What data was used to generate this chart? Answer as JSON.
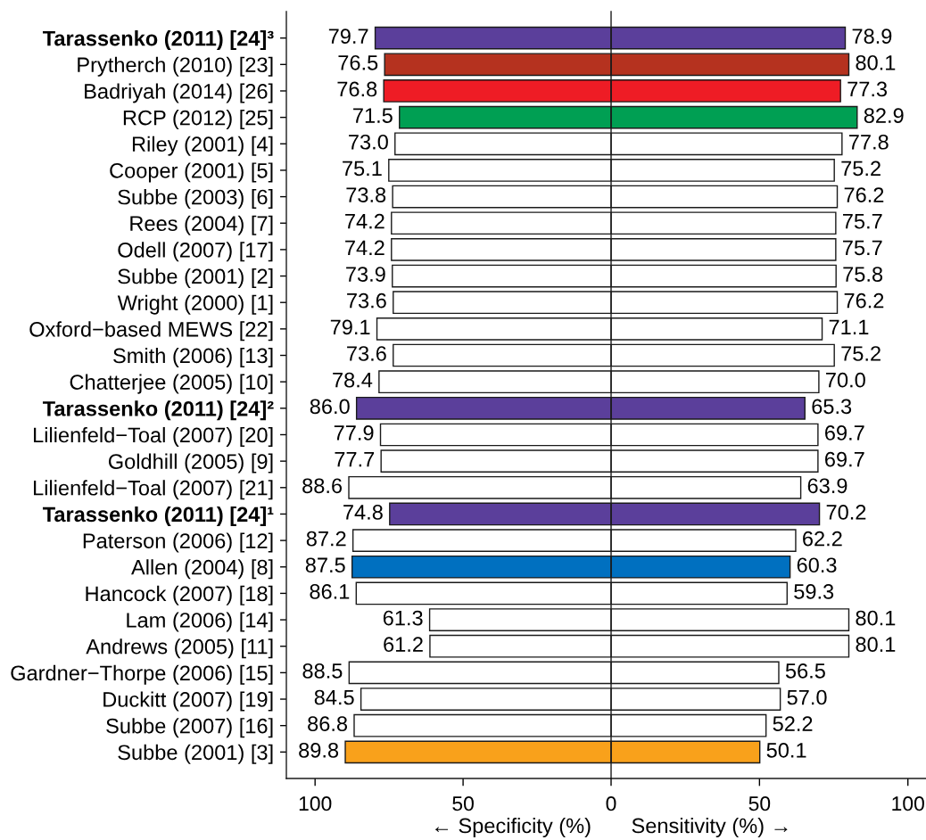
{
  "chart_data": [
    {
      "type": "bar",
      "orientation": "horizontal",
      "categories": [
        "Tarassenko (2011) [24]³",
        "Prytherch (2010) [23]",
        "Badriyah (2014) [26]",
        "RCP (2012) [25]",
        "Riley (2001) [4]",
        "Cooper (2001) [5]",
        "Subbe (2003) [6]",
        "Rees (2004) [7]",
        "Odell (2007) [17]",
        "Subbe (2001) [2]",
        "Wright (2000) [1]",
        "Oxford−based MEWS [22]",
        "Smith (2006) [13]",
        "Chatterjee (2005) [10]",
        "Tarassenko (2011) [24]²",
        "Lilienfeld−Toal (2007) [20]",
        "Goldhill (2005) [9]",
        "Lilienfeld−Toal (2007) [21]",
        "Tarassenko (2011) [24]¹",
        "Paterson (2006) [12]",
        "Allen (2004) [8]",
        "Hancock (2007) [18]",
        "Lam (2006) [14]",
        "Andrews (2005) [11]",
        "Gardner−Thorpe (2006) [15]",
        "Duckitt (2007) [19]",
        "Subbe (2007) [16]",
        "Subbe (2001) [3]"
      ],
      "values": [
        79.7,
        76.5,
        76.8,
        71.5,
        73.0,
        75.1,
        73.8,
        74.2,
        74.2,
        73.9,
        73.6,
        79.1,
        73.6,
        78.4,
        86.0,
        77.9,
        77.7,
        88.6,
        74.8,
        87.2,
        87.5,
        86.1,
        61.3,
        61.2,
        88.5,
        84.5,
        86.8,
        89.8
      ],
      "value_labels": [
        "79.7",
        "76.5",
        "76.8",
        "71.5",
        "73.0",
        "75.1",
        "73.8",
        "74.2",
        "74.2",
        "73.9",
        "73.6",
        "79.1",
        "73.6",
        "78.4",
        "86.0",
        "77.9",
        "77.7",
        "88.6",
        "74.8",
        "87.2",
        "87.5",
        "86.1",
        "61.3",
        "61.2",
        "88.5",
        "84.5",
        "86.8",
        "89.8"
      ],
      "colors": [
        "#5b3f9b",
        "#b5321f",
        "#ee1c25",
        "#009f53",
        "#ffffff",
        "#ffffff",
        "#ffffff",
        "#ffffff",
        "#ffffff",
        "#ffffff",
        "#ffffff",
        "#ffffff",
        "#ffffff",
        "#ffffff",
        "#5b3f9b",
        "#ffffff",
        "#ffffff",
        "#ffffff",
        "#5b3f9b",
        "#ffffff",
        "#0070c0",
        "#ffffff",
        "#ffffff",
        "#ffffff",
        "#ffffff",
        "#ffffff",
        "#ffffff",
        "#f9a11b"
      ],
      "xlabel": "← Specificity (%)",
      "xlim": [
        109.7,
        0
      ],
      "xticks": [
        100,
        50
      ]
    },
    {
      "type": "bar",
      "orientation": "horizontal",
      "categories": [
        null,
        null,
        null,
        null,
        null,
        null,
        null,
        null,
        null,
        null,
        null,
        null,
        null,
        null,
        null,
        null,
        null,
        null,
        null,
        null,
        null,
        null,
        null,
        null,
        null,
        null,
        null,
        null
      ],
      "values": [
        78.9,
        80.1,
        77.3,
        82.9,
        77.8,
        75.2,
        76.2,
        75.7,
        75.7,
        75.8,
        76.2,
        71.1,
        75.2,
        70.0,
        65.3,
        69.7,
        69.7,
        63.9,
        70.2,
        62.2,
        60.3,
        59.3,
        80.1,
        80.1,
        56.5,
        57.0,
        52.2,
        50.1
      ],
      "value_labels": [
        "78.9",
        "80.1",
        "77.3",
        "82.9",
        "77.8",
        "75.2",
        "76.2",
        "75.7",
        "75.7",
        "75.8",
        "76.2",
        "71.1",
        "75.2",
        "70.0",
        "65.3",
        "69.7",
        "69.7",
        "63.9",
        "70.2",
        "62.2",
        "60.3",
        "59.3",
        "80.1",
        "80.1",
        "56.5",
        "57.0",
        "52.2",
        "50.1"
      ],
      "colors": [
        "#5b3f9b",
        "#b5321f",
        "#ee1c25",
        "#009f53",
        "#ffffff",
        "#ffffff",
        "#ffffff",
        "#ffffff",
        "#ffffff",
        "#ffffff",
        "#ffffff",
        "#ffffff",
        "#ffffff",
        "#ffffff",
        "#5b3f9b",
        "#ffffff",
        "#ffffff",
        "#ffffff",
        "#5b3f9b",
        "#ffffff",
        "#0070c0",
        "#ffffff",
        "#ffffff",
        "#ffffff",
        "#ffffff",
        "#ffffff",
        "#ffffff",
        "#f9a11b"
      ],
      "xlabel": "Sensitivity (%) →",
      "xlim": [
        0,
        106.1
      ],
      "xticks": [
        0,
        50,
        100
      ],
      "tick_labels": "x"
    }
  ]
}
